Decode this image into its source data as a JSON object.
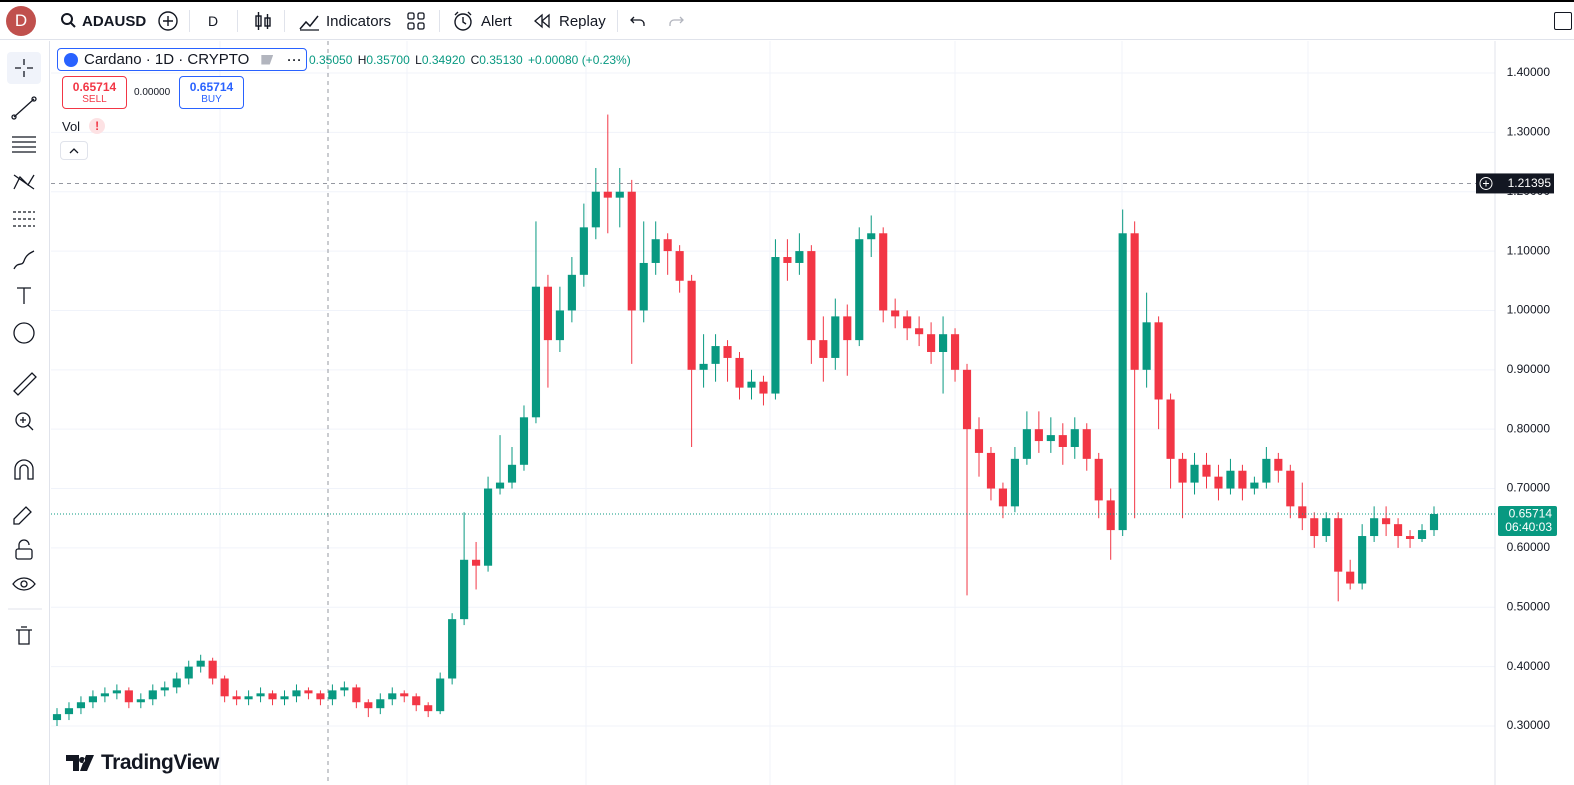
{
  "toolbar": {
    "avatar": "D",
    "symbol": "ADAUSD",
    "interval": "D",
    "indicators": "Indicators",
    "alert": "Alert",
    "replay": "Replay"
  },
  "legend": {
    "title": "Cardano · 1D · CRYPTO",
    "open": "0.35050",
    "high_letter": "H",
    "high": "0.35700",
    "low_letter": "L",
    "low": "0.34920",
    "close_letter": "C",
    "close": "0.35130",
    "change": "+0.00080 (+0.23%)"
  },
  "trading_panel": {
    "sell_price": "0.65714",
    "sell": "SELL",
    "spread": "0.00000",
    "buy_price": "0.65714",
    "buy": "BUY"
  },
  "volume": {
    "label": "Vol",
    "warning": "!"
  },
  "branding": "TradingView",
  "chart_data": {
    "type": "candlestick",
    "up_color": "#089981",
    "down_color": "#f23645",
    "grid": true,
    "ylim": [
      0.2006,
      1.4539
    ],
    "yticks": [
      {
        "value": 0.3,
        "label": "0.30000"
      },
      {
        "value": 0.4,
        "label": "0.40000"
      },
      {
        "value": 0.5,
        "label": "0.50000"
      },
      {
        "value": 0.6,
        "label": "0.60000"
      },
      {
        "value": 0.7,
        "label": "0.70000"
      },
      {
        "value": 0.8,
        "label": "0.80000"
      },
      {
        "value": 0.9,
        "label": "0.90000"
      },
      {
        "value": 1.0,
        "label": "1.00000"
      },
      {
        "value": 1.1,
        "label": "1.10000"
      },
      {
        "value": 1.2,
        "label": "1.20000"
      },
      {
        "value": 1.3,
        "label": "1.30000"
      },
      {
        "value": 1.4,
        "label": "1.40000"
      }
    ],
    "crosshair_price": 1.21395,
    "last_price": 0.65714,
    "countdown": "06:40:03",
    "candles": [
      [
        0.31,
        0.33,
        0.3,
        0.32
      ],
      [
        0.32,
        0.34,
        0.31,
        0.33
      ],
      [
        0.33,
        0.35,
        0.32,
        0.34
      ],
      [
        0.34,
        0.36,
        0.33,
        0.35
      ],
      [
        0.35,
        0.365,
        0.34,
        0.355
      ],
      [
        0.355,
        0.37,
        0.345,
        0.36
      ],
      [
        0.36,
        0.365,
        0.33,
        0.34
      ],
      [
        0.34,
        0.355,
        0.33,
        0.345
      ],
      [
        0.345,
        0.37,
        0.335,
        0.36
      ],
      [
        0.36,
        0.375,
        0.35,
        0.365
      ],
      [
        0.365,
        0.39,
        0.355,
        0.38
      ],
      [
        0.38,
        0.41,
        0.37,
        0.4
      ],
      [
        0.4,
        0.42,
        0.39,
        0.41
      ],
      [
        0.41,
        0.415,
        0.37,
        0.38
      ],
      [
        0.38,
        0.385,
        0.34,
        0.35
      ],
      [
        0.35,
        0.36,
        0.335,
        0.345
      ],
      [
        0.345,
        0.36,
        0.335,
        0.35
      ],
      [
        0.35,
        0.365,
        0.34,
        0.355
      ],
      [
        0.355,
        0.36,
        0.335,
        0.345
      ],
      [
        0.345,
        0.36,
        0.335,
        0.35
      ],
      [
        0.35,
        0.37,
        0.34,
        0.36
      ],
      [
        0.36,
        0.365,
        0.345,
        0.355
      ],
      [
        0.355,
        0.36,
        0.335,
        0.345
      ],
      [
        0.345,
        0.37,
        0.335,
        0.36
      ],
      [
        0.36,
        0.375,
        0.35,
        0.365
      ],
      [
        0.365,
        0.37,
        0.33,
        0.34
      ],
      [
        0.34,
        0.345,
        0.315,
        0.33
      ],
      [
        0.33,
        0.355,
        0.32,
        0.345
      ],
      [
        0.345,
        0.365,
        0.335,
        0.355
      ],
      [
        0.355,
        0.36,
        0.34,
        0.35
      ],
      [
        0.35,
        0.355,
        0.325,
        0.335
      ],
      [
        0.335,
        0.34,
        0.315,
        0.325
      ],
      [
        0.325,
        0.39,
        0.32,
        0.38
      ],
      [
        0.38,
        0.49,
        0.37,
        0.48
      ],
      [
        0.48,
        0.66,
        0.47,
        0.58
      ],
      [
        0.58,
        0.61,
        0.53,
        0.57
      ],
      [
        0.57,
        0.72,
        0.56,
        0.7
      ],
      [
        0.7,
        0.79,
        0.69,
        0.71
      ],
      [
        0.71,
        0.77,
        0.7,
        0.74
      ],
      [
        0.74,
        0.84,
        0.73,
        0.82
      ],
      [
        0.82,
        1.15,
        0.81,
        1.04
      ],
      [
        1.04,
        1.06,
        0.87,
        0.95
      ],
      [
        0.95,
        1.04,
        0.93,
        1.0
      ],
      [
        1.0,
        1.09,
        0.98,
        1.06
      ],
      [
        1.06,
        1.18,
        1.04,
        1.14
      ],
      [
        1.14,
        1.24,
        1.12,
        1.2
      ],
      [
        1.2,
        1.33,
        1.13,
        1.19
      ],
      [
        1.19,
        1.24,
        1.14,
        1.2
      ],
      [
        1.2,
        1.22,
        0.91,
        1.0
      ],
      [
        1.0,
        1.15,
        0.98,
        1.08
      ],
      [
        1.08,
        1.15,
        1.06,
        1.12
      ],
      [
        1.12,
        1.13,
        1.06,
        1.1
      ],
      [
        1.1,
        1.11,
        1.03,
        1.05
      ],
      [
        1.05,
        1.06,
        0.77,
        0.9
      ],
      [
        0.9,
        0.96,
        0.87,
        0.91
      ],
      [
        0.91,
        0.96,
        0.88,
        0.94
      ],
      [
        0.94,
        0.95,
        0.88,
        0.92
      ],
      [
        0.92,
        0.93,
        0.85,
        0.87
      ],
      [
        0.87,
        0.9,
        0.85,
        0.88
      ],
      [
        0.88,
        0.89,
        0.84,
        0.86
      ],
      [
        0.86,
        1.12,
        0.85,
        1.09
      ],
      [
        1.09,
        1.12,
        1.05,
        1.08
      ],
      [
        1.08,
        1.13,
        1.06,
        1.1
      ],
      [
        1.1,
        1.11,
        0.91,
        0.95
      ],
      [
        0.95,
        0.99,
        0.88,
        0.92
      ],
      [
        0.92,
        1.02,
        0.9,
        0.99
      ],
      [
        0.99,
        1.01,
        0.89,
        0.95
      ],
      [
        0.95,
        1.14,
        0.94,
        1.12
      ],
      [
        1.12,
        1.16,
        1.09,
        1.13
      ],
      [
        1.13,
        1.14,
        0.98,
        1.0
      ],
      [
        1.0,
        1.02,
        0.97,
        0.99
      ],
      [
        0.99,
        1.0,
        0.95,
        0.97
      ],
      [
        0.97,
        0.99,
        0.94,
        0.96
      ],
      [
        0.96,
        0.98,
        0.91,
        0.93
      ],
      [
        0.93,
        0.99,
        0.86,
        0.96
      ],
      [
        0.96,
        0.97,
        0.88,
        0.9
      ],
      [
        0.9,
        0.91,
        0.52,
        0.8
      ],
      [
        0.8,
        0.82,
        0.72,
        0.76
      ],
      [
        0.76,
        0.77,
        0.68,
        0.7
      ],
      [
        0.7,
        0.71,
        0.65,
        0.67
      ],
      [
        0.67,
        0.77,
        0.66,
        0.75
      ],
      [
        0.75,
        0.83,
        0.74,
        0.8
      ],
      [
        0.8,
        0.83,
        0.76,
        0.78
      ],
      [
        0.78,
        0.82,
        0.76,
        0.79
      ],
      [
        0.79,
        0.81,
        0.74,
        0.77
      ],
      [
        0.77,
        0.82,
        0.75,
        0.8
      ],
      [
        0.8,
        0.81,
        0.73,
        0.75
      ],
      [
        0.75,
        0.76,
        0.65,
        0.68
      ],
      [
        0.68,
        0.7,
        0.58,
        0.63
      ],
      [
        0.63,
        1.17,
        0.62,
        1.13
      ],
      [
        1.13,
        1.15,
        0.65,
        0.9
      ],
      [
        0.9,
        1.03,
        0.87,
        0.98
      ],
      [
        0.98,
        0.99,
        0.8,
        0.85
      ],
      [
        0.85,
        0.86,
        0.7,
        0.75
      ],
      [
        0.75,
        0.76,
        0.65,
        0.71
      ],
      [
        0.71,
        0.76,
        0.69,
        0.74
      ],
      [
        0.74,
        0.76,
        0.7,
        0.72
      ],
      [
        0.72,
        0.74,
        0.68,
        0.7
      ],
      [
        0.7,
        0.75,
        0.69,
        0.73
      ],
      [
        0.73,
        0.74,
        0.68,
        0.7
      ],
      [
        0.7,
        0.72,
        0.69,
        0.71
      ],
      [
        0.71,
        0.77,
        0.7,
        0.75
      ],
      [
        0.75,
        0.76,
        0.71,
        0.73
      ],
      [
        0.73,
        0.74,
        0.65,
        0.67
      ],
      [
        0.67,
        0.71,
        0.63,
        0.65
      ],
      [
        0.65,
        0.66,
        0.6,
        0.62
      ],
      [
        0.62,
        0.66,
        0.61,
        0.65
      ],
      [
        0.65,
        0.66,
        0.51,
        0.56
      ],
      [
        0.56,
        0.58,
        0.53,
        0.54
      ],
      [
        0.54,
        0.64,
        0.53,
        0.62
      ],
      [
        0.62,
        0.67,
        0.61,
        0.65
      ],
      [
        0.65,
        0.67,
        0.62,
        0.64
      ],
      [
        0.64,
        0.65,
        0.6,
        0.62
      ],
      [
        0.62,
        0.63,
        0.6,
        0.615
      ],
      [
        0.615,
        0.64,
        0.61,
        0.63
      ],
      [
        0.63,
        0.67,
        0.62,
        0.65714
      ]
    ]
  }
}
